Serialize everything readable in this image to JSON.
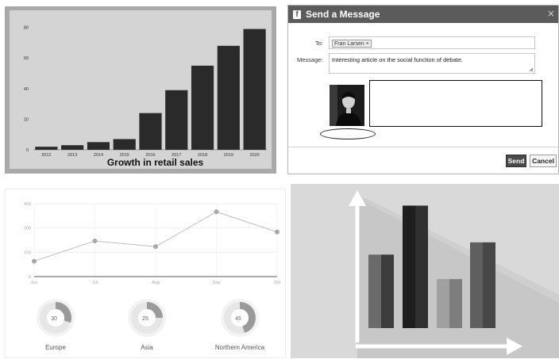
{
  "bar_panel": {
    "chart_data": {
      "type": "bar",
      "title": "Growth in retail sales",
      "categories": [
        "2012",
        "2013",
        "2014",
        "2015",
        "2016",
        "2017",
        "2018",
        "2019",
        "2020"
      ],
      "values": [
        2,
        3,
        5,
        7,
        24,
        39,
        55,
        68,
        79
      ],
      "yticks": [
        "0",
        "20",
        "40",
        "60",
        "80"
      ],
      "ylim": [
        0,
        85
      ],
      "bar_color": "#2a2a2a",
      "grid": false
    }
  },
  "message_dialog": {
    "title": "Send a Message",
    "close_icon": "×",
    "to_label": "To:",
    "to_token": "Fran Larsen ×",
    "message_label": "Message:",
    "message_text": "Interesting article on the social function of debate.",
    "send_label": "Send",
    "cancel_label": "Cancel",
    "header_color": "#5b5b5b"
  },
  "line_panel": {
    "chart_data": {
      "type": "line",
      "categories": [
        "Jun",
        "Jul",
        "Aug",
        "Sep",
        "Oct"
      ],
      "values": [
        95,
        220,
        185,
        400,
        275
      ],
      "yticks": [
        "0",
        "150",
        "300",
        "450"
      ],
      "ylim": [
        0,
        450
      ],
      "line_color": "#c0c0c0",
      "point_color": "#a8a8a8",
      "grid": true
    },
    "donuts": [
      {
        "label": "Europe",
        "value": 30
      },
      {
        "label": "Asia",
        "value": 25
      },
      {
        "label": "Northern America",
        "value": 45
      }
    ]
  },
  "bars3d_panel": {
    "chart_data": {
      "type": "bar",
      "values": [
        3,
        5,
        2,
        3.5
      ],
      "ylim": [
        0,
        5.5
      ],
      "grid": false
    }
  }
}
